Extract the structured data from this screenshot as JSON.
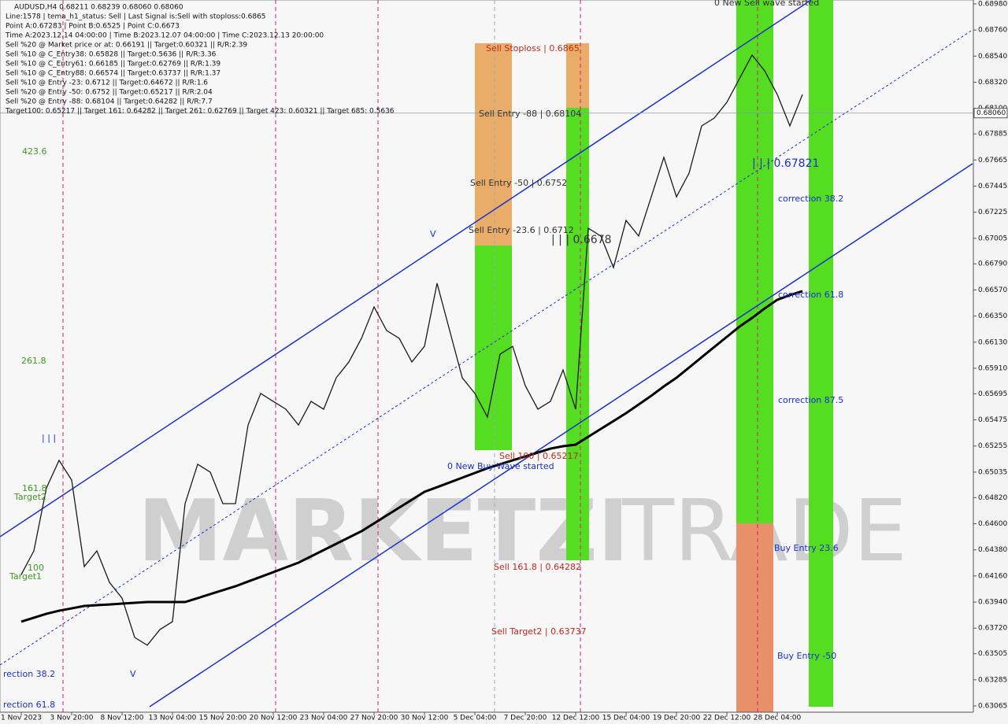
{
  "chart_data": {
    "type": "line",
    "title": "AUDUSD,H4  0.68211 0.68239 0.68060 0.68060",
    "info_lines": [
      "Line:1578 | tema_h1_status: Sell | Last Signal is:Sell with stoploss:0.6865",
      "Point A:0.67283 | Point B:0.6525 | Point C:0.6673",
      "Time A:2023.12.14 04:00:00 | Time B:2023.12.07 04:00:00 | Time C:2023.12.13 20:00:00",
      "Sell %20 @ Market price or at: 0.66191 || Target:0.60321 || R/R:2.39",
      "Sell %10 @ C_Entry38: 0.65828 || Target:0.5636 || R/R:3.36",
      "Sell %10 @ C_Entry61: 0.66185 || Target:0.62769 || R/R:1.39",
      "Sell %10 @ C_Entry88: 0.66574 || Target:0.63737 || R/R:1.37",
      "Sell %10 @ Entry -23: 0.6712 || Target:0.64672 || R/R:1.6",
      "Sell %20 @ Entry -50: 0.6752 || Target:0.65217 || R/R:2.04",
      "Sell %20 @ Entry -88: 0.68104 || Target:0.64282 || R/R:7.7",
      "Target100: 0.65217 || Target 161: 0.64282 || Target 261: 0.62769 || Target 423: 0.60321 || Target 685: 0.5636"
    ],
    "watermark": [
      "MARKETZI",
      "TRADE"
    ],
    "annotations": [
      "Sell Stoploss | 0.6865",
      "Sell Entry -88 | 0.68104",
      "Sell Entry -50 | 0.6752",
      "Sell Entry -23.6 | 0.6712",
      "| | | 0.67821",
      "| | | 0.6678",
      "correction 38.2",
      "correction 61.8",
      "correction 87.5",
      "Sell 100 | 0.65217",
      "0 New Buy Wave started",
      "Sell 161.8 | 0.64282",
      "Sell Target2 | 0.63737",
      "Buy Entry 23.6",
      "Buy Entry -50",
      "0 New Sell wave started",
      "423.6",
      "261.8",
      "161.8",
      "Target2",
      "100",
      "Target1",
      "rection 38.2",
      "rection 61.8",
      "| | |",
      "V",
      "V"
    ],
    "current_price": {
      "value": 0.6806,
      "label": "0.68060"
    },
    "categories": [
      "1 Nov 2023",
      null,
      null,
      null,
      "3 Nov 20:00",
      null,
      null,
      null,
      "8 Nov 12:00",
      null,
      null,
      null,
      "13 Nov 04:00",
      null,
      null,
      null,
      "15 Nov 20:00",
      null,
      null,
      null,
      "20 Nov 12:00",
      null,
      null,
      null,
      "23 Nov 04:00",
      null,
      null,
      null,
      "27 Nov 20:00",
      null,
      null,
      null,
      "30 Nov 12:00",
      null,
      null,
      null,
      "5 Dec 04:00",
      null,
      null,
      null,
      "7 Dec 20:00",
      null,
      null,
      null,
      "12 Dec 12:00",
      null,
      null,
      null,
      "15 Dec 04:00",
      null,
      null,
      null,
      "19 Dec 20:00",
      null,
      null,
      null,
      "22 Dec 12:00",
      null,
      null,
      null,
      "28 Dec 04:00",
      null,
      null
    ],
    "series": [
      {
        "color": "#1a1a1a",
        "values": [
          0.64172,
          0.64371,
          0.64902,
          0.65134,
          0.64968,
          0.64239,
          0.64371,
          0.64106,
          0.63973,
          0.63642,
          0.63576,
          0.63708,
          0.63775,
          0.64769,
          0.65101,
          0.65035,
          0.64769,
          0.64769,
          0.65432,
          0.65698,
          0.65631,
          0.65565,
          0.65432,
          0.65631,
          0.65565,
          0.6583,
          0.65963,
          0.66162,
          0.66427,
          0.66228,
          0.66162,
          0.65963,
          0.66095,
          0.66626,
          0.66228,
          0.6583,
          0.65698,
          0.65499,
          0.66029,
          0.66095,
          0.65764,
          0.65565,
          0.65631,
          0.65896,
          0.65565,
          0.6709,
          0.67024,
          0.66758,
          0.67156,
          0.67024,
          0.67355,
          0.67687,
          0.67355,
          0.67554,
          0.67952,
          0.68018,
          0.68151,
          0.6835,
          0.68549,
          0.68416,
          0.68217,
          0.67952,
          0.68217
        ]
      },
      {
        "color": "#000000",
        "values": [
          0.63775,
          0.63808,
          0.63841,
          0.63867,
          0.63887,
          0.63907,
          0.63914,
          0.6392,
          0.63927,
          0.63934,
          0.6394,
          0.6394,
          0.6394,
          0.6394,
          0.63973,
          0.64007,
          0.6404,
          0.64073,
          0.64113,
          0.64152,
          0.64192,
          0.64232,
          0.64272,
          0.64325,
          0.64378,
          0.64431,
          0.64484,
          0.64537,
          0.64603,
          0.6467,
          0.64736,
          0.64802,
          0.64869,
          0.64908,
          0.64948,
          0.64988,
          0.65028,
          0.65068,
          0.65101,
          0.65134,
          0.65167,
          0.652,
          0.65233,
          0.65253,
          0.65266,
          0.65333,
          0.65399,
          0.65465,
          0.65532,
          0.65605,
          0.65678,
          0.65757,
          0.6583,
          0.65916,
          0.66003,
          0.66089,
          0.66175,
          0.66261,
          0.66334,
          0.66414,
          0.66487,
          0.66526,
          0.6656
        ]
      }
    ],
    "ylim": [
      0.63012,
      0.69013
    ],
    "yticks": [
      {
        "value": 0.6898,
        "label": "0.68980"
      },
      {
        "value": 0.6876,
        "label": "0.68760"
      },
      {
        "value": 0.6854,
        "label": "0.68540"
      },
      {
        "value": 0.6832,
        "label": "0.68320"
      },
      {
        "value": 0.681,
        "label": "0.68100"
      },
      {
        "value": 0.67885,
        "label": "0.67885"
      },
      {
        "value": 0.67665,
        "label": "0.67665"
      },
      {
        "value": 0.67445,
        "label": "0.67445"
      },
      {
        "value": 0.67225,
        "label": "0.67225"
      },
      {
        "value": 0.67005,
        "label": "0.67005"
      },
      {
        "value": 0.6679,
        "label": "0.66790"
      },
      {
        "value": 0.6657,
        "label": "0.66570"
      },
      {
        "value": 0.6635,
        "label": "0.66350"
      },
      {
        "value": 0.6613,
        "label": "0.66130"
      },
      {
        "value": 0.6591,
        "label": "0.65910"
      },
      {
        "value": 0.65695,
        "label": "0.65695"
      },
      {
        "value": 0.65475,
        "label": "0.65475"
      },
      {
        "value": 0.65255,
        "label": "0.65255"
      },
      {
        "value": 0.65035,
        "label": "0.65035"
      },
      {
        "value": 0.6482,
        "label": "0.64820"
      },
      {
        "value": 0.646,
        "label": "0.64600"
      },
      {
        "value": 0.6438,
        "label": "0.64380"
      },
      {
        "value": 0.6416,
        "label": "0.64160"
      },
      {
        "value": 0.6394,
        "label": "0.63940"
      },
      {
        "value": 0.6372,
        "label": "0.63720"
      },
      0.63505,
      {
        "value": 0.63285,
        "label": "0.63285"
      },
      0.63065
    ],
    "grid": false
  }
}
